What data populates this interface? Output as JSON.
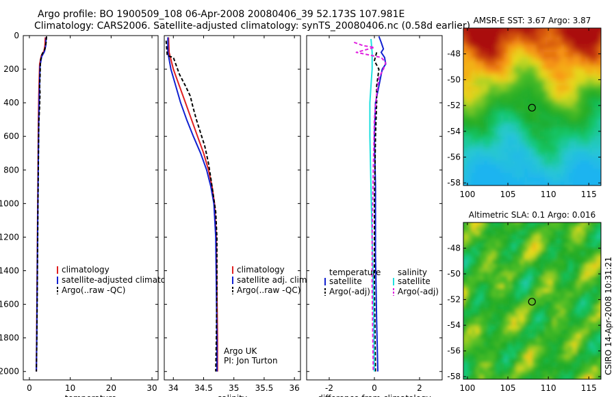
{
  "header": {
    "title_line1": "Argo profile: BO 1900509_108 06-Apr-2008 20080406_39 52.173S 107.981E",
    "title_line2": "Climatology: CARS2006. Satellite-adjusted climatology: synTS_20080406.nc (0.58d earlier)"
  },
  "side_label": "CSIRO 14-Apr-2008 10:31:21",
  "colors": {
    "climatology": "#e02020",
    "satellite": "#1020d0",
    "argo": "#000000",
    "salinity_sat": "#20e0e0",
    "salinity_argo": "#e020e0"
  },
  "chart_data": [
    {
      "type": "line",
      "xlabel": "temperature",
      "ylim": [
        0,
        2050
      ],
      "xlim": [
        -1.5,
        31.5
      ],
      "yticks": [
        0,
        200,
        400,
        600,
        800,
        1000,
        1200,
        1400,
        1600,
        1800,
        2000
      ],
      "xticks": [
        0,
        10,
        20,
        30
      ],
      "legend": [
        "climatology",
        "satellite-adjusted climatology",
        "Argo(..raw -QC)"
      ],
      "series": [
        {
          "name": "climatology",
          "style": "red",
          "points": [
            [
              3.9,
              10
            ],
            [
              3.8,
              60
            ],
            [
              3.6,
              90
            ],
            [
              2.9,
              120
            ],
            [
              2.5,
              170
            ],
            [
              2.4,
              260
            ],
            [
              2.3,
              350
            ],
            [
              2.2,
              500
            ],
            [
              2.1,
              800
            ],
            [
              2.0,
              1100
            ],
            [
              1.9,
              1400
            ],
            [
              1.8,
              1700
            ],
            [
              1.7,
              2000
            ]
          ]
        },
        {
          "name": "satellite-adjusted climatology",
          "style": "blue",
          "points": [
            [
              4.1,
              10
            ],
            [
              4.0,
              60
            ],
            [
              3.7,
              95
            ],
            [
              3.0,
              125
            ],
            [
              2.6,
              180
            ],
            [
              2.5,
              280
            ],
            [
              2.4,
              380
            ],
            [
              2.3,
              500
            ],
            [
              2.2,
              700
            ],
            [
              2.1,
              950
            ],
            [
              2.0,
              1200
            ],
            [
              1.9,
              1500
            ],
            [
              1.8,
              1800
            ],
            [
              1.7,
              2000
            ]
          ]
        },
        {
          "name": "Argo(..raw -QC)",
          "style": "black-dash",
          "points": [
            [
              4.2,
              5
            ],
            [
              4.1,
              40
            ],
            [
              3.8,
              80
            ],
            [
              3.1,
              110
            ],
            [
              2.7,
              150
            ],
            [
              2.6,
              250
            ],
            [
              2.5,
              300
            ],
            [
              2.6,
              340
            ],
            [
              2.5,
              420
            ],
            [
              2.3,
              520
            ],
            [
              2.2,
              750
            ],
            [
              2.1,
              1000
            ],
            [
              2.0,
              1300
            ],
            [
              1.9,
              1600
            ],
            [
              1.8,
              1850
            ],
            [
              1.7,
              2000
            ]
          ]
        }
      ]
    },
    {
      "type": "line",
      "xlabel": "salinity",
      "ylim": [
        0,
        2050
      ],
      "xlim": [
        33.85,
        36.1
      ],
      "xticks": [
        34,
        34.5,
        35,
        35.5,
        36
      ],
      "xticklabels": [
        "34",
        "34.5",
        "35",
        "35.5",
        "36"
      ],
      "legend": [
        "climatology",
        "satellite adj. clim.",
        "Argo(..raw -QC)"
      ],
      "annotation": [
        "Argo UK",
        "PI: Jon Turton"
      ],
      "series": [
        {
          "name": "climatology",
          "style": "red",
          "points": [
            [
              33.92,
              10
            ],
            [
              33.93,
              100
            ],
            [
              34.0,
              200
            ],
            [
              34.1,
              300
            ],
            [
              34.2,
              400
            ],
            [
              34.3,
              500
            ],
            [
              34.4,
              600
            ],
            [
              34.5,
              700
            ],
            [
              34.58,
              800
            ],
            [
              34.64,
              900
            ],
            [
              34.68,
              1000
            ],
            [
              34.71,
              1200
            ],
            [
              34.72,
              1500
            ],
            [
              34.73,
              1800
            ],
            [
              34.73,
              2000
            ]
          ]
        },
        {
          "name": "satellite adj. clim.",
          "style": "blue",
          "points": [
            [
              33.91,
              10
            ],
            [
              33.91,
              100
            ],
            [
              33.96,
              200
            ],
            [
              34.04,
              300
            ],
            [
              34.12,
              400
            ],
            [
              34.22,
              500
            ],
            [
              34.33,
              600
            ],
            [
              34.45,
              700
            ],
            [
              34.55,
              800
            ],
            [
              34.62,
              900
            ],
            [
              34.67,
              1000
            ],
            [
              34.7,
              1200
            ],
            [
              34.71,
              1500
            ],
            [
              34.72,
              1800
            ],
            [
              34.72,
              2000
            ]
          ]
        },
        {
          "name": "Argo(..raw -QC)",
          "style": "black-dash",
          "points": [
            [
              33.88,
              30
            ],
            [
              33.9,
              120
            ],
            [
              34.0,
              130
            ],
            [
              34.05,
              180
            ],
            [
              34.1,
              230
            ],
            [
              34.2,
              300
            ],
            [
              34.28,
              360
            ],
            [
              34.32,
              420
            ],
            [
              34.38,
              500
            ],
            [
              34.45,
              580
            ],
            [
              34.52,
              660
            ],
            [
              34.58,
              760
            ],
            [
              34.62,
              850
            ],
            [
              34.66,
              950
            ],
            [
              34.7,
              1050
            ],
            [
              34.72,
              1200
            ],
            [
              34.72,
              1500
            ],
            [
              34.71,
              1800
            ],
            [
              34.7,
              2000
            ]
          ]
        }
      ]
    },
    {
      "type": "line",
      "xlabel": "difference from climatology",
      "ylim": [
        0,
        2050
      ],
      "xlim": [
        -3.0,
        3.0
      ],
      "xticks": [
        -2,
        0,
        2
      ],
      "legend_left_title": "temperature",
      "legend_right_title": "salinity",
      "legend_left": [
        "satellite",
        "Argo(-adj)"
      ],
      "legend_right": [
        "satellite",
        "Argo(-adj)"
      ],
      "series": [
        {
          "name": "temperature satellite",
          "style": "blue",
          "points": [
            [
              0.2,
              5
            ],
            [
              0.3,
              40
            ],
            [
              0.4,
              80
            ],
            [
              0.3,
              100
            ],
            [
              0.45,
              130
            ],
            [
              0.5,
              170
            ],
            [
              0.35,
              200
            ],
            [
              0.2,
              300
            ],
            [
              0.05,
              400
            ],
            [
              0.0,
              600
            ],
            [
              0.05,
              900
            ],
            [
              0.05,
              1300
            ],
            [
              0.1,
              1700
            ],
            [
              0.15,
              2000
            ]
          ]
        },
        {
          "name": "temperature Argo(-adj)",
          "style": "black-dash",
          "points": [
            [
              0.1,
              100
            ],
            [
              0.0,
              150
            ],
            [
              0.2,
              200
            ],
            [
              0.1,
              300
            ],
            [
              0.1,
              400
            ],
            [
              0.05,
              600
            ],
            [
              0.0,
              1000
            ],
            [
              0.0,
              1500
            ],
            [
              0.05,
              2000
            ]
          ]
        },
        {
          "name": "salinity satellite",
          "style": "cyan",
          "points": [
            [
              -0.15,
              20
            ],
            [
              -0.1,
              100
            ],
            [
              -0.1,
              200
            ],
            [
              -0.15,
              300
            ],
            [
              -0.2,
              400
            ],
            [
              -0.2,
              600
            ],
            [
              -0.15,
              900
            ],
            [
              -0.1,
              1200
            ],
            [
              -0.05,
              1500
            ],
            [
              0.0,
              2000
            ]
          ]
        },
        {
          "name": "salinity Argo(-adj)",
          "style": "magenta-dash",
          "points": [
            [
              -0.9,
              40
            ],
            [
              -0.5,
              60
            ],
            [
              0.0,
              70
            ],
            [
              -0.8,
              100
            ],
            [
              0.3,
              130
            ],
            [
              0.5,
              160
            ],
            [
              0.4,
              200
            ],
            [
              0.2,
              250
            ],
            [
              0.1,
              350
            ],
            [
              0.0,
              500
            ],
            [
              -0.05,
              800
            ],
            [
              -0.1,
              1200
            ],
            [
              -0.1,
              1500
            ],
            [
              -0.05,
              2000
            ]
          ]
        }
      ]
    },
    {
      "type": "heatmap",
      "title": "AMSR-E SST: 3.67 Argo: 3.87",
      "xticks": [
        100,
        105,
        110,
        115
      ],
      "yticks": [
        -48,
        -50,
        -52,
        -54,
        -56,
        -58
      ],
      "xlim": [
        99.5,
        116.5
      ],
      "ylim": [
        -58.2,
        -46.0
      ],
      "marker": {
        "lon": 107.98,
        "lat": -52.17
      }
    },
    {
      "type": "heatmap",
      "title": "Altimetric SLA: 0.1 Argo: 0.016",
      "xticks": [
        100,
        105,
        110,
        115
      ],
      "yticks": [
        -48,
        -50,
        -52,
        -54,
        -56,
        -58
      ],
      "xlim": [
        99.5,
        116.5
      ],
      "ylim": [
        -58.2,
        -46.0
      ],
      "marker": {
        "lon": 107.98,
        "lat": -52.17
      }
    }
  ]
}
